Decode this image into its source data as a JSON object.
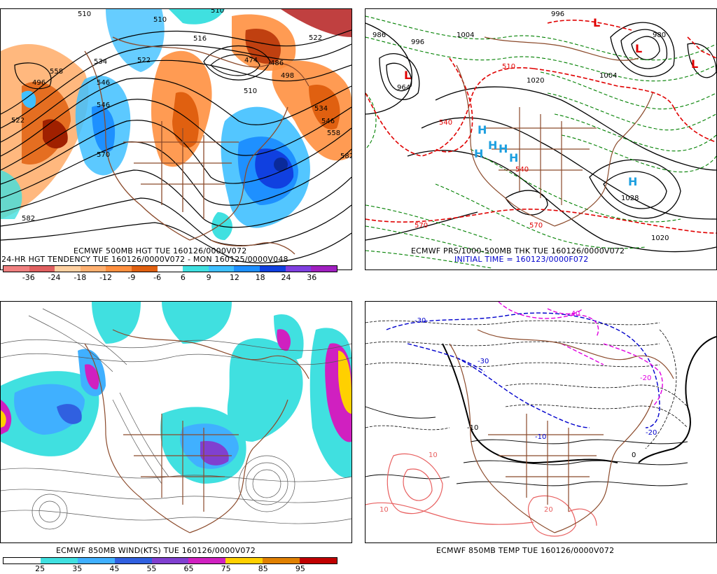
{
  "panels": {
    "top_left": {
      "caption_line1": "ECMWF 500MB HGT TUE 160126/0000V072",
      "caption_line2": "24-HR HGT TENDENCY TUE 160126/0000V072 - MON 160125/0000V048",
      "contour_labels": [
        "510",
        "510",
        "516",
        "522",
        "534",
        "546",
        "486",
        "474",
        "498",
        "510",
        "522",
        "534",
        "546",
        "558",
        "582",
        "570",
        "546",
        "558",
        "582",
        "496",
        "522",
        "510"
      ],
      "colorbar_labels": [
        "-36",
        "-24",
        "-18",
        "-12",
        "-9",
        "-6",
        "6",
        "9",
        "12",
        "18",
        "24",
        "36"
      ],
      "colorbar_colors": [
        "#f08080",
        "#e06060",
        "#ffd0a0",
        "#ffb070",
        "#ff9040",
        "#e06010",
        "#ffffff",
        "#40e0e0",
        "#40c0ff",
        "#1e90ff",
        "#1040e0",
        "#8040e0",
        "#a020c0"
      ]
    },
    "top_right": {
      "caption_line1": "ECMWF PRS/1000-500MB THK TUE 160126/0000V072",
      "caption_line2": "INITIAL TIME = 160123/0000F072",
      "pressure_labels": [
        "986",
        "996",
        "1004",
        "1020",
        "1028",
        "1020",
        "996",
        "1004",
        "964",
        "980"
      ],
      "thickness_labels": [
        "510",
        "540",
        "570",
        "570",
        "540"
      ],
      "high_marker": "H",
      "low_marker": "L"
    },
    "bottom_left": {
      "caption_line1": "ECMWF 850MB WIND(KTS) TUE 160126/0000V072",
      "colorbar_labels": [
        "25",
        "35",
        "45",
        "55",
        "65",
        "75",
        "85",
        "95"
      ],
      "colorbar_colors": [
        "#ffffff",
        "#40e0e0",
        "#40b0ff",
        "#3060e0",
        "#8040d0",
        "#d020c0",
        "#ffd000",
        "#e08000",
        "#c00000"
      ]
    },
    "bottom_right": {
      "caption_line1": "ECMWF 850MB TEMP TUE 160126/0000V072",
      "temp_labels": [
        "-10",
        "-20",
        "-30",
        "-40",
        "-30",
        "-20",
        "-10",
        "0",
        "10",
        "10",
        "20"
      ]
    }
  },
  "colors": {
    "coast": "#8b4a2b",
    "contour": "#000000",
    "dashed_red": "#e00000",
    "dashed_green": "#008000",
    "dashed_blue": "#0000cc",
    "dashed_magenta": "#e000e0",
    "warm_temp": "#e86060"
  }
}
